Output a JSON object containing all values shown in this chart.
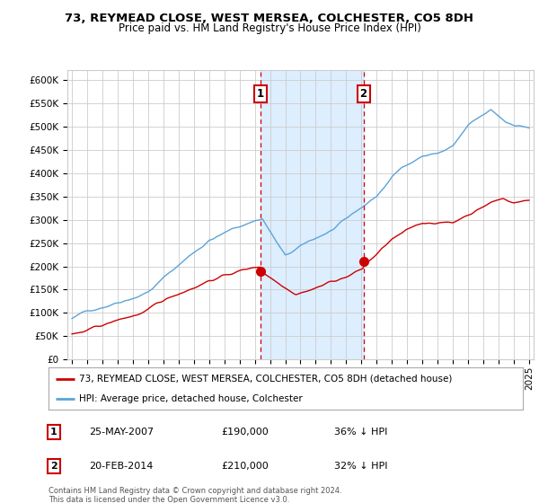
{
  "title": "73, REYMEAD CLOSE, WEST MERSEA, COLCHESTER, CO5 8DH",
  "subtitle": "Price paid vs. HM Land Registry's House Price Index (HPI)",
  "ylim": [
    0,
    620000
  ],
  "yticks": [
    0,
    50000,
    100000,
    150000,
    200000,
    250000,
    300000,
    350000,
    400000,
    450000,
    500000,
    550000,
    600000
  ],
  "ytick_labels": [
    "£0",
    "£50K",
    "£100K",
    "£150K",
    "£200K",
    "£250K",
    "£300K",
    "£350K",
    "£400K",
    "£450K",
    "£500K",
    "£550K",
    "£600K"
  ],
  "sale1_year": 2007.38,
  "sale1_price": 190000,
  "sale2_year": 2014.13,
  "sale2_price": 210000,
  "legend_property": "73, REYMEAD CLOSE, WEST MERSEA, COLCHESTER, CO5 8DH (detached house)",
  "legend_hpi": "HPI: Average price, detached house, Colchester",
  "note1_date": "25-MAY-2007",
  "note1_price": "£190,000",
  "note1_hpi": "36% ↓ HPI",
  "note2_date": "20-FEB-2014",
  "note2_price": "£210,000",
  "note2_hpi": "32% ↓ HPI",
  "footer": "Contains HM Land Registry data © Crown copyright and database right 2024.\nThis data is licensed under the Open Government Licence v3.0.",
  "property_color": "#cc0000",
  "hpi_color": "#5ba3d9",
  "shade_color": "#ddeeff",
  "marker_box_color": "#cc0000",
  "grid_color": "#cccccc",
  "background_color": "#ffffff"
}
